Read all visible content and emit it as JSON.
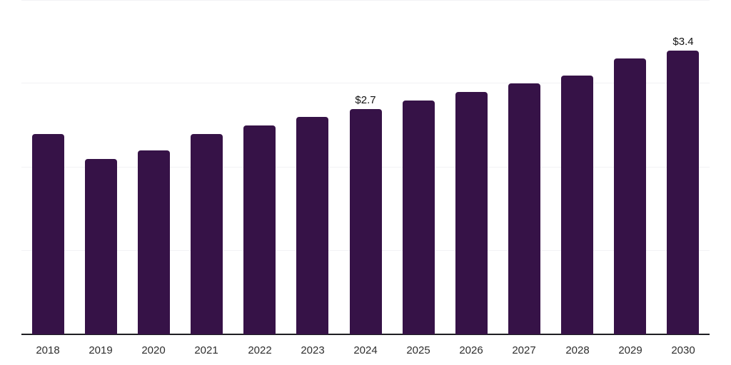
{
  "chart_data": {
    "type": "bar",
    "title": "",
    "xlabel": "",
    "ylabel": "",
    "categories": [
      "2018",
      "2019",
      "2020",
      "2021",
      "2022",
      "2023",
      "2024",
      "2025",
      "2026",
      "2027",
      "2028",
      "2029",
      "2030"
    ],
    "values": [
      2.4,
      2.1,
      2.2,
      2.4,
      2.5,
      2.6,
      2.7,
      2.8,
      2.9,
      3.0,
      3.1,
      3.3,
      3.4
    ],
    "data_labels": [
      "",
      "",
      "",
      "",
      "",
      "",
      "$2.7",
      "",
      "",
      "",
      "",
      "",
      "$3.4"
    ],
    "ylim": [
      0,
      4
    ],
    "gridline_values": [
      1,
      2,
      3,
      4
    ],
    "grid": "horizontal-only",
    "legend_position": "none",
    "y_axis_tick_labels": "none"
  },
  "style": {
    "bar_color": "#361247",
    "gridline_color": "#f2f2f5",
    "axis_line_color": "#1e1e22",
    "x_tick_label_color": "#2e2e2e",
    "value_label_color": "#121212",
    "background_color": "#ffffff"
  }
}
